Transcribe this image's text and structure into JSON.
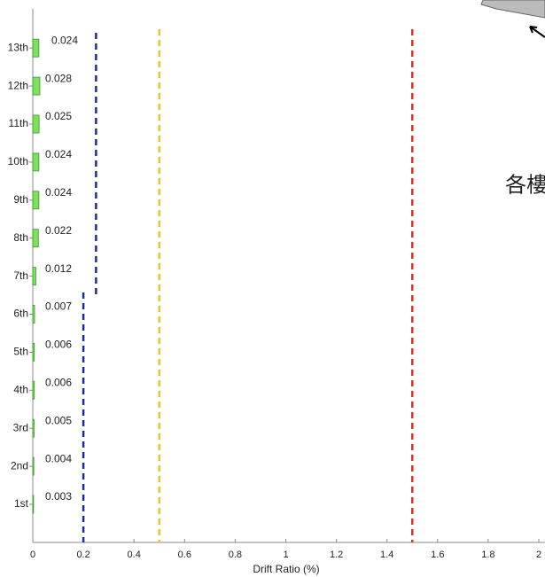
{
  "chart_data": {
    "type": "barh",
    "xlabel": "Drift Ratio (%)",
    "categories": [
      "1st",
      "2nd",
      "3rd",
      "4th",
      "5th",
      "6th",
      "7th",
      "8th",
      "9th",
      "10th",
      "11th",
      "12th",
      "13th"
    ],
    "values": [
      0.003,
      0.004,
      0.005,
      0.006,
      0.006,
      0.007,
      0.012,
      0.022,
      0.024,
      0.024,
      0.025,
      0.028,
      0.024
    ],
    "color": "#7ee05e",
    "xlim": [
      0,
      2
    ],
    "xticks": [
      0,
      0.2,
      0.4,
      0.6,
      0.8,
      1,
      1.2,
      1.4,
      1.6,
      1.8,
      2
    ],
    "limit_lines": [
      {
        "value": 0.2,
        "color": "#1f2a9c"
      },
      {
        "value": 0.25,
        "color": "#1f2a9c"
      },
      {
        "value": 0.5,
        "color": "#f2c12e"
      },
      {
        "value": 1.5,
        "color": "#d9302c"
      }
    ],
    "annotation": "各樓"
  }
}
